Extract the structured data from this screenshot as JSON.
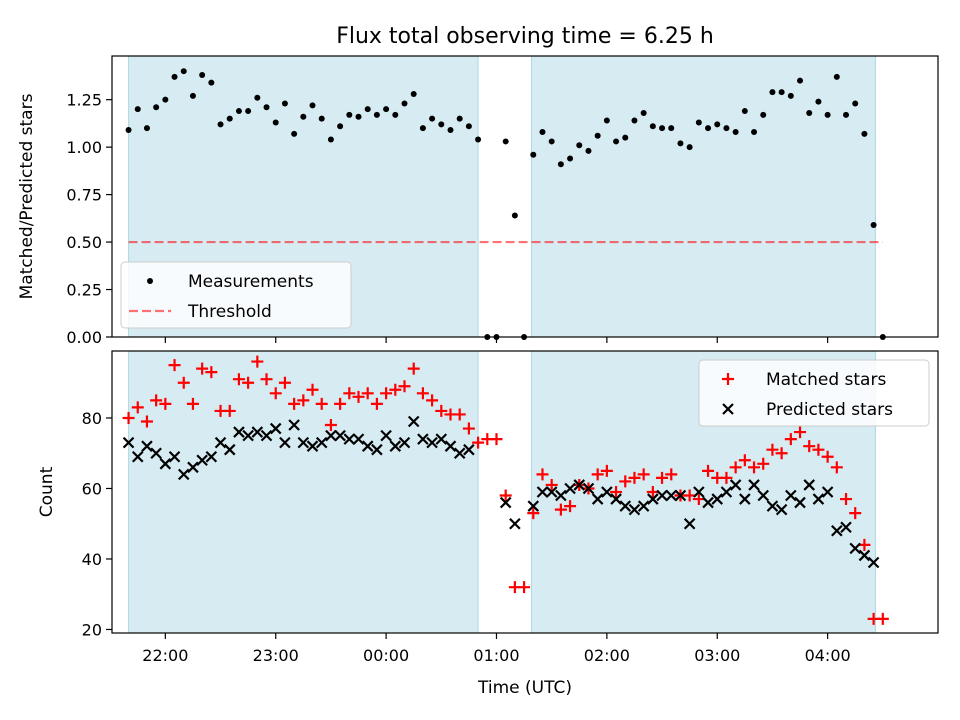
{
  "title": "Flux total observing time = 6.25 h",
  "colors": {
    "shade": "#add8e6",
    "measurement": "#000000",
    "threshold": "#ff0000",
    "matched": "#ff0000",
    "predicted": "#000000"
  },
  "chart_data": [
    {
      "type": "scatter",
      "panel": "top",
      "ylabel": "Matched/Predicted stars",
      "xlim": [
        "21:31",
        "05:00"
      ],
      "ylim": [
        0,
        1.48
      ],
      "yticks": [
        0.0,
        0.25,
        0.5,
        0.75,
        1.0,
        1.25
      ],
      "ytick_labels": [
        "0.00",
        "0.25",
        "0.50",
        "0.75",
        "1.00",
        "1.25"
      ],
      "shaded_intervals": [
        [
          "21:40",
          "00:50"
        ],
        [
          "01:19",
          "04:26"
        ]
      ],
      "legend": {
        "placement": "lower-left",
        "entries": [
          "Measurements",
          "Threshold"
        ]
      },
      "series": [
        {
          "name": "Measurements",
          "marker": "dot",
          "x": [
            "21:40",
            "21:45",
            "21:50",
            "21:55",
            "22:00",
            "22:05",
            "22:10",
            "22:15",
            "22:20",
            "22:25",
            "22:30",
            "22:35",
            "22:40",
            "22:45",
            "22:50",
            "22:55",
            "23:00",
            "23:05",
            "23:10",
            "23:15",
            "23:20",
            "23:25",
            "23:30",
            "23:35",
            "23:40",
            "23:45",
            "23:50",
            "23:55",
            "00:00",
            "00:05",
            "00:10",
            "00:15",
            "00:20",
            "00:25",
            "00:30",
            "00:35",
            "00:40",
            "00:45",
            "00:50",
            "00:55",
            "01:00",
            "01:05",
            "01:10",
            "01:15",
            "01:20",
            "01:25",
            "01:30",
            "01:35",
            "01:40",
            "01:45",
            "01:50",
            "01:55",
            "02:00",
            "02:05",
            "02:10",
            "02:15",
            "02:20",
            "02:25",
            "02:30",
            "02:35",
            "02:40",
            "02:45",
            "02:50",
            "02:55",
            "03:00",
            "03:05",
            "03:10",
            "03:15",
            "03:20",
            "03:25",
            "03:30",
            "03:35",
            "03:40",
            "03:45",
            "03:50",
            "03:55",
            "04:00",
            "04:05",
            "04:10",
            "04:15",
            "04:20",
            "04:25",
            "04:30"
          ],
          "y": [
            1.09,
            1.2,
            1.1,
            1.21,
            1.25,
            1.37,
            1.4,
            1.27,
            1.38,
            1.34,
            1.12,
            1.15,
            1.19,
            1.19,
            1.26,
            1.21,
            1.13,
            1.23,
            1.07,
            1.16,
            1.22,
            1.15,
            1.04,
            1.11,
            1.17,
            1.16,
            1.2,
            1.17,
            1.2,
            1.17,
            1.23,
            1.28,
            1.1,
            1.15,
            1.12,
            1.09,
            1.15,
            1.11,
            1.04,
            0.0,
            0.0,
            1.03,
            0.64,
            0.0,
            0.96,
            1.08,
            1.03,
            0.91,
            0.94,
            1.01,
            0.98,
            1.06,
            1.14,
            1.03,
            1.05,
            1.14,
            1.18,
            1.11,
            1.1,
            1.1,
            1.02,
            1.0,
            1.13,
            1.1,
            1.12,
            1.1,
            1.08,
            1.19,
            1.08,
            1.17,
            1.29,
            1.29,
            1.27,
            1.35,
            1.18,
            1.24,
            1.17,
            1.37,
            1.17,
            1.23,
            1.07,
            0.59,
            0.0
          ]
        },
        {
          "name": "Threshold",
          "style": "dashed",
          "x": [
            "21:40",
            "04:30"
          ],
          "y": [
            0.5,
            0.5
          ]
        }
      ]
    },
    {
      "type": "scatter",
      "panel": "bottom",
      "xlabel": "Time (UTC)",
      "ylabel": "Count",
      "xlim": [
        "21:31",
        "05:00"
      ],
      "ylim": [
        19,
        99
      ],
      "yticks": [
        20,
        40,
        60,
        80
      ],
      "xticks": [
        "22:00",
        "23:00",
        "00:00",
        "01:00",
        "02:00",
        "03:00",
        "04:00"
      ],
      "shaded_intervals": [
        [
          "21:40",
          "00:50"
        ],
        [
          "01:19",
          "04:26"
        ]
      ],
      "legend": {
        "placement": "upper-right",
        "entries": [
          "Matched stars",
          "Predicted stars"
        ]
      },
      "series": [
        {
          "name": "Matched stars",
          "marker": "plus",
          "x": [
            "21:40",
            "21:45",
            "21:50",
            "21:55",
            "22:00",
            "22:05",
            "22:10",
            "22:15",
            "22:20",
            "22:25",
            "22:30",
            "22:35",
            "22:40",
            "22:45",
            "22:50",
            "22:55",
            "23:00",
            "23:05",
            "23:10",
            "23:15",
            "23:20",
            "23:25",
            "23:30",
            "23:35",
            "23:40",
            "23:45",
            "23:50",
            "23:55",
            "00:00",
            "00:05",
            "00:10",
            "00:15",
            "00:20",
            "00:25",
            "00:30",
            "00:35",
            "00:40",
            "00:45",
            "00:50",
            "00:55",
            "01:00",
            "01:05",
            "01:10",
            "01:15",
            "01:20",
            "01:25",
            "01:30",
            "01:35",
            "01:40",
            "01:45",
            "01:50",
            "01:55",
            "02:00",
            "02:05",
            "02:10",
            "02:15",
            "02:20",
            "02:25",
            "02:30",
            "02:35",
            "02:40",
            "02:45",
            "02:50",
            "02:55",
            "03:00",
            "03:05",
            "03:10",
            "03:15",
            "03:20",
            "03:25",
            "03:30",
            "03:35",
            "03:40",
            "03:45",
            "03:50",
            "03:55",
            "04:00",
            "04:05",
            "04:10",
            "04:15",
            "04:20",
            "04:25",
            "04:30"
          ],
          "y": [
            80,
            83,
            79,
            85,
            84,
            95,
            90,
            84,
            94,
            93,
            82,
            82,
            91,
            90,
            96,
            91,
            87,
            90,
            84,
            85,
            88,
            84,
            78,
            84,
            87,
            86,
            87,
            84,
            87,
            88,
            89,
            94,
            87,
            85,
            82,
            81,
            81,
            77,
            73,
            74,
            74,
            58,
            32,
            32,
            53,
            64,
            61,
            54,
            55,
            61,
            60,
            64,
            65,
            59,
            62,
            63,
            64,
            59,
            63,
            64,
            58,
            58,
            57,
            65,
            63,
            63,
            66,
            68,
            66,
            67,
            71,
            70,
            74,
            76,
            72,
            71,
            69,
            66,
            57,
            53,
            44,
            23,
            23
          ]
        },
        {
          "name": "Predicted stars",
          "marker": "x",
          "x": [
            "21:40",
            "21:45",
            "21:50",
            "21:55",
            "22:00",
            "22:05",
            "22:10",
            "22:15",
            "22:20",
            "22:25",
            "22:30",
            "22:35",
            "22:40",
            "22:45",
            "22:50",
            "22:55",
            "23:00",
            "23:05",
            "23:10",
            "23:15",
            "23:20",
            "23:25",
            "23:30",
            "23:35",
            "23:40",
            "23:45",
            "23:50",
            "23:55",
            "00:00",
            "00:05",
            "00:10",
            "00:15",
            "00:20",
            "00:25",
            "00:30",
            "00:35",
            "00:40",
            "00:45",
            "01:05",
            "01:10",
            "01:20",
            "01:25",
            "01:30",
            "01:35",
            "01:40",
            "01:45",
            "01:50",
            "01:55",
            "02:00",
            "02:05",
            "02:10",
            "02:15",
            "02:20",
            "02:25",
            "02:30",
            "02:35",
            "02:40",
            "02:45",
            "02:50",
            "02:55",
            "03:00",
            "03:05",
            "03:10",
            "03:15",
            "03:20",
            "03:25",
            "03:30",
            "03:35",
            "03:40",
            "03:45",
            "03:50",
            "03:55",
            "04:00",
            "04:05",
            "04:10",
            "04:15",
            "04:20",
            "04:25"
          ],
          "y": [
            73,
            69,
            72,
            70,
            67,
            69,
            64,
            66,
            68,
            69,
            73,
            71,
            76,
            75,
            76,
            75,
            77,
            73,
            78,
            73,
            72,
            73,
            75,
            75,
            74,
            74,
            72,
            71,
            75,
            72,
            73,
            79,
            74,
            73,
            74,
            72,
            70,
            71,
            56,
            50,
            55,
            59,
            59,
            58,
            60,
            61,
            60,
            57,
            59,
            57,
            55,
            54,
            55,
            57,
            58,
            58,
            58,
            50,
            59,
            56,
            57,
            59,
            61,
            57,
            61,
            58,
            55,
            54,
            58,
            56,
            61,
            57,
            59,
            48,
            49,
            43,
            41,
            39
          ]
        }
      ]
    }
  ]
}
